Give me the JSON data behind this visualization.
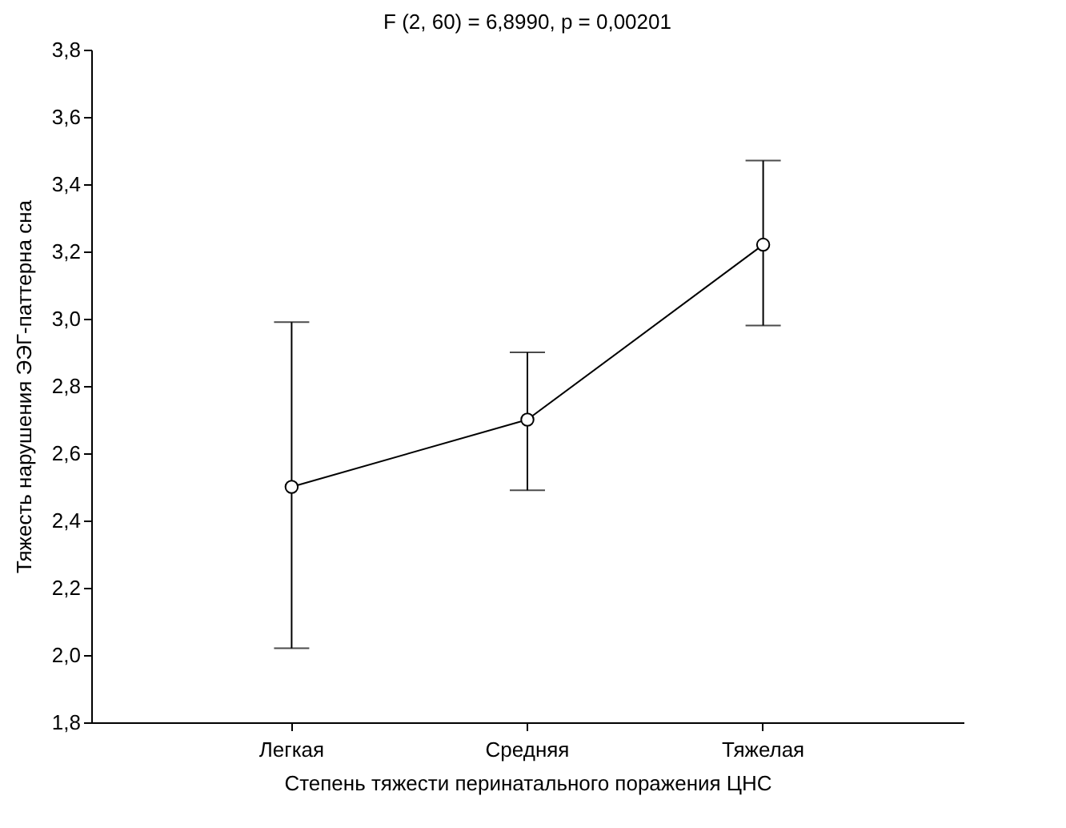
{
  "chart_data": {
    "type": "line",
    "title": "F (2, 60) = 6,8990, p = 0,00201",
    "xlabel": "Степень тяжести перинатального поражения ЦНС",
    "ylabel": "Тяжесть нарушения ЭЭГ-паттерна сна",
    "categories": [
      "Легкая",
      "Средняя",
      "Тяжелая"
    ],
    "series": [
      {
        "color": "#000000",
        "values": [
          2.5,
          2.7,
          3.22
        ],
        "errors": [
          [
            2.02,
            2.99
          ],
          [
            2.49,
            2.9
          ],
          [
            2.98,
            3.47
          ]
        ]
      }
    ],
    "ylim": [
      1.8,
      3.8
    ],
    "yticks": [
      {
        "value": 1.8,
        "label": "1,8"
      },
      {
        "value": 2.0,
        "label": "2,0"
      },
      {
        "value": 2.2,
        "label": "2,2"
      },
      {
        "value": 2.4,
        "label": "2,4"
      },
      {
        "value": 2.6,
        "label": "2,6"
      },
      {
        "value": 2.8,
        "label": "2,8"
      },
      {
        "value": 3.0,
        "label": "3,0"
      },
      {
        "value": 3.2,
        "label": "3,2"
      },
      {
        "value": 3.4,
        "label": "3,4"
      },
      {
        "value": 3.6,
        "label": "3,6"
      },
      {
        "value": 3.8,
        "label": "3,8"
      }
    ],
    "grid": false,
    "marker": "circle",
    "line_style": "solid"
  }
}
